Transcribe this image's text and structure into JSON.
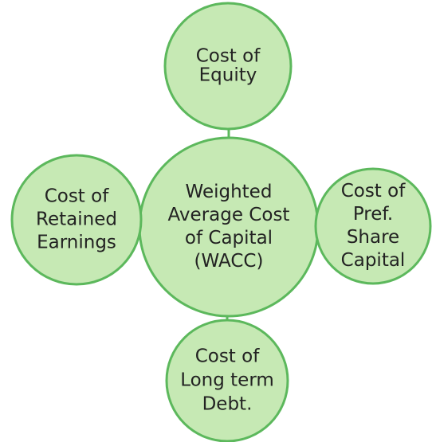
{
  "nodes": [
    {
      "lines": [
        "Weighted",
        "Average Cost",
        "of Capital",
        "(WACC)"
      ]
    },
    {
      "lines": [
        "Cost of",
        "Equity"
      ]
    },
    {
      "lines": [
        "Cost of",
        "Retained",
        "Earnings"
      ]
    },
    {
      "lines": [
        "Cost of",
        "Pref.",
        "Share",
        "Capital"
      ]
    },
    {
      "lines": [
        "Cost of",
        "Long term",
        "Debt."
      ]
    }
  ]
}
